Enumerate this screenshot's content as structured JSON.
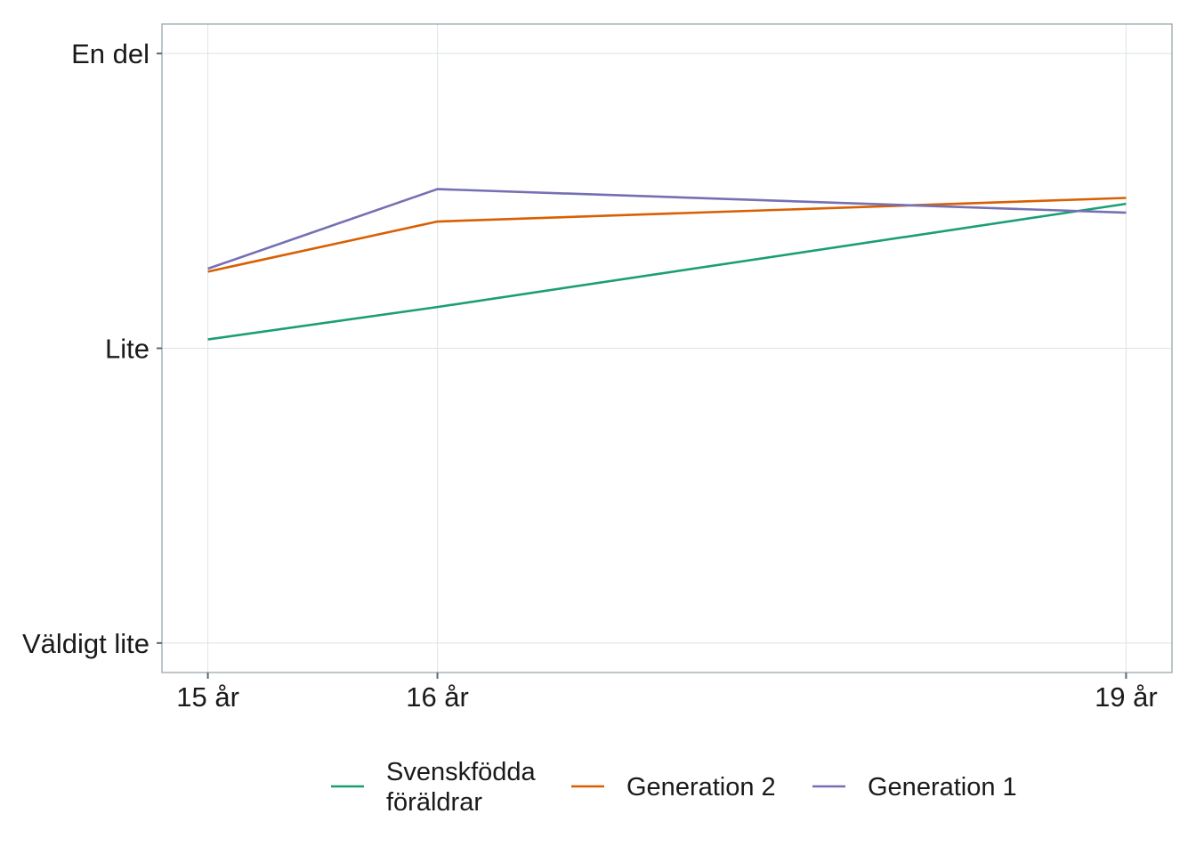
{
  "chart_data": {
    "type": "line",
    "x": [
      15,
      16,
      19
    ],
    "x_tick_labels": [
      "15 år",
      "16 år",
      "19 år"
    ],
    "xlim": [
      14.8,
      19.2
    ],
    "y_levels": [
      1,
      2,
      3
    ],
    "y_tick_labels": [
      "Väldigt lite",
      "Lite",
      "En del"
    ],
    "ylim": [
      0.9,
      3.1
    ],
    "grid": true,
    "legend_position": "bottom",
    "series": [
      {
        "name": [
          "Svenskfödda",
          "föräldrar"
        ],
        "color": "#1b9e77",
        "values": [
          2.03,
          2.14,
          2.49
        ]
      },
      {
        "name": [
          "Generation 2"
        ],
        "color": "#d95f02",
        "values": [
          2.26,
          2.43,
          2.51
        ]
      },
      {
        "name": [
          "Generation 1"
        ],
        "color": "#7570b3",
        "values": [
          2.27,
          2.54,
          2.46
        ]
      }
    ]
  }
}
